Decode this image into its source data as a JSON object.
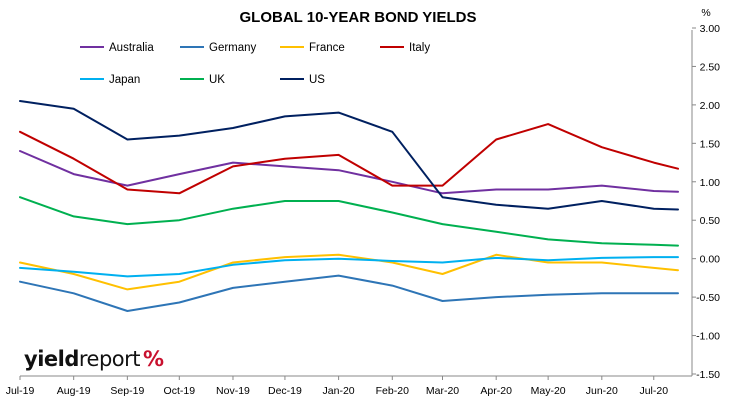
{
  "chart_data": {
    "type": "line",
    "title": "GLOBAL 10-YEAR BOND YIELDS",
    "y_unit_label": "%",
    "ylim": [
      -1.5,
      3.0
    ],
    "y_ticks": [
      "3.00",
      "2.50",
      "2.00",
      "1.50",
      "1.00",
      "0.50",
      "0.00",
      "-0.50",
      "-1.00",
      "-1.50"
    ],
    "y_tick_values": [
      3.0,
      2.5,
      2.0,
      1.5,
      1.0,
      0.5,
      0.0,
      -0.5,
      -1.0,
      -1.5
    ],
    "y_axis_position": "right",
    "grid": false,
    "legend_placement": "top-left",
    "x_tick_labels": [
      "Jul-19",
      "Aug-19",
      "Sep-19",
      "Oct-19",
      "Nov-19",
      "Dec-19",
      "Jan-20",
      "Feb-20",
      "Mar-20",
      "Apr-20",
      "May-20",
      "Jun-20",
      "Jul-20"
    ],
    "x_dates": [
      "2019-07-01",
      "2019-08-01",
      "2019-09-01",
      "2019-10-01",
      "2019-11-01",
      "2019-12-01",
      "2020-01-01",
      "2020-02-01",
      "2020-03-01",
      "2020-04-01",
      "2020-05-01",
      "2020-06-01",
      "2020-07-01",
      "2020-07-15"
    ],
    "series": [
      {
        "name": "Australia",
        "color": "#7030a0",
        "values": [
          1.4,
          1.1,
          0.95,
          1.1,
          1.25,
          1.2,
          1.15,
          1.0,
          0.85,
          0.9,
          0.9,
          0.95,
          0.88,
          0.87
        ]
      },
      {
        "name": "Germany",
        "color": "#2e75b6",
        "values": [
          -0.3,
          -0.45,
          -0.68,
          -0.57,
          -0.38,
          -0.3,
          -0.22,
          -0.35,
          -0.55,
          -0.5,
          -0.47,
          -0.45,
          -0.45,
          -0.45
        ]
      },
      {
        "name": "France",
        "color": "#ffc000",
        "values": [
          -0.05,
          -0.2,
          -0.4,
          -0.3,
          -0.05,
          0.02,
          0.05,
          -0.05,
          -0.2,
          0.05,
          -0.05,
          -0.05,
          -0.12,
          -0.15
        ]
      },
      {
        "name": "Italy",
        "color": "#c00000",
        "values": [
          1.65,
          1.3,
          0.9,
          0.85,
          1.2,
          1.3,
          1.35,
          0.95,
          0.95,
          1.55,
          1.75,
          1.45,
          1.25,
          1.17
        ]
      },
      {
        "name": "Japan",
        "color": "#00b0f0",
        "values": [
          -0.12,
          -0.17,
          -0.23,
          -0.2,
          -0.08,
          -0.02,
          0.0,
          -0.03,
          -0.05,
          0.01,
          -0.02,
          0.01,
          0.02,
          0.02
        ]
      },
      {
        "name": "UK",
        "color": "#00b050",
        "values": [
          0.8,
          0.55,
          0.45,
          0.5,
          0.65,
          0.75,
          0.75,
          0.6,
          0.45,
          0.35,
          0.25,
          0.2,
          0.18,
          0.17
        ]
      },
      {
        "name": "US",
        "color": "#002060",
        "values": [
          2.05,
          1.95,
          1.55,
          1.6,
          1.7,
          1.85,
          1.9,
          1.65,
          0.8,
          0.7,
          0.65,
          0.75,
          0.65,
          0.64
        ]
      }
    ]
  },
  "logo": {
    "part1": "yield",
    "part2": "report",
    "part3": "%"
  }
}
